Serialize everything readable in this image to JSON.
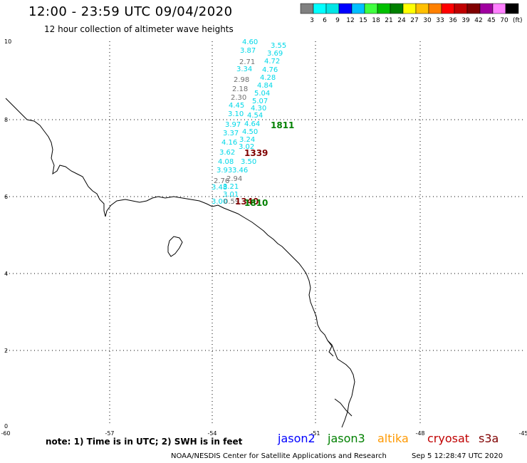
{
  "header": {
    "title": "12:00 - 23:59 UTC 09/04/2020",
    "subtitle": "12 hour collection of altimeter wave heights"
  },
  "color_scale": {
    "labels": [
      "3",
      "6",
      "9",
      "12",
      "15",
      "18",
      "21",
      "24",
      "27",
      "30",
      "33",
      "36",
      "39",
      "42",
      "45",
      "70"
    ],
    "unit": "(ft)",
    "colors": [
      "#808080",
      "#00ffff",
      "#00e5e5",
      "#0000ff",
      "#00bfff",
      "#40ff40",
      "#00c000",
      "#008000",
      "#ffff00",
      "#ffc000",
      "#ff8000",
      "#ff0000",
      "#c00000",
      "#800000",
      "#a000a0",
      "#ff80ff",
      "#000000"
    ]
  },
  "axes": {
    "x_ticks": [
      "-60",
      "-57",
      "-54",
      "-51",
      "-48",
      "-45"
    ],
    "y_ticks": [
      "0",
      "2",
      "4",
      "6",
      "8",
      "10"
    ]
  },
  "tracks": {
    "cyan_values": [
      "4.60",
      "3.55",
      "3.87",
      "3.69",
      "4.72",
      "3.34",
      "4.76",
      "4.28",
      "4.84",
      "5.04",
      "5.07",
      "4.45",
      "4.30",
      "3.10",
      "4.54",
      "3.97",
      "4.64",
      "3.37",
      "4.50",
      "3.24",
      "4.16",
      "3.02",
      "3.62",
      "3.50",
      "4.08",
      "3.93",
      "3.46",
      "3.48",
      "3.21",
      "3.01",
      "3.00"
    ],
    "gray_values": [
      "2.71",
      "2.98",
      "2.18",
      "2.30",
      "2.76",
      "2.94",
      "0.59"
    ],
    "pass_labels": [
      {
        "text": "1811",
        "color": "#008000"
      },
      {
        "text": "1339",
        "color": "#800000"
      },
      {
        "text": "1340",
        "color": "#800000"
      },
      {
        "text": "1810",
        "color": "#008000"
      }
    ]
  },
  "footer": {
    "note": "note: 1) Time is in UTC; 2) SWH is in feet",
    "legend": [
      {
        "name": "jason2",
        "color": "#0000ff"
      },
      {
        "name": "jason3",
        "color": "#008000"
      },
      {
        "name": "altika",
        "color": "#ff9900"
      },
      {
        "name": "cryosat",
        "color": "#c00000"
      },
      {
        "name": "s3a",
        "color": "#800000"
      }
    ],
    "credit": "NOAA/NESDIS Center for Satellite Applications and Research",
    "timestamp": "Sep  5 12:28:47 UTC 2020"
  }
}
